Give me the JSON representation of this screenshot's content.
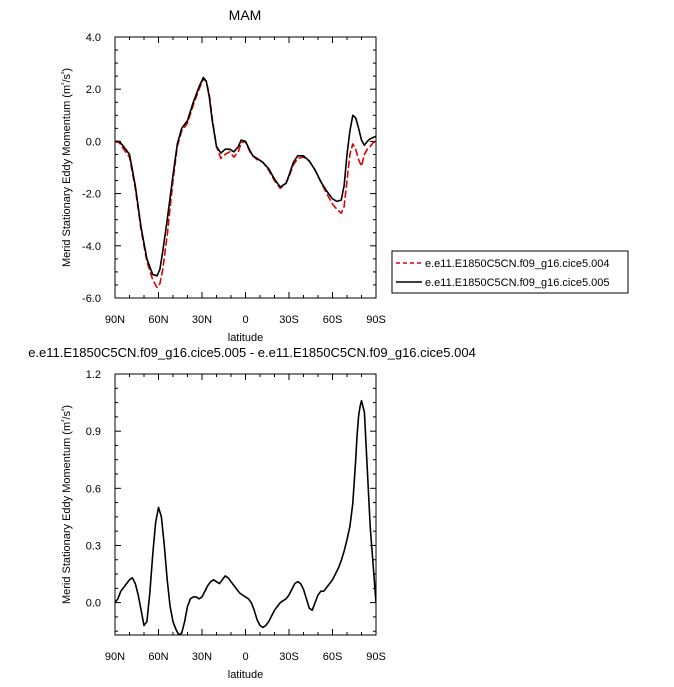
{
  "chart_data": [
    {
      "type": "line",
      "title": "MAM",
      "xlabel": "latitude",
      "ylabel": "Merid Stationary Eddy Momentum (m²/s²)",
      "xlim": [
        90,
        -90
      ],
      "ylim": [
        -6.0,
        4.0
      ],
      "x_ticks": [
        {
          "value": 90,
          "label": "90N"
        },
        {
          "value": 60,
          "label": "60N"
        },
        {
          "value": 30,
          "label": "30N"
        },
        {
          "value": 0,
          "label": "0"
        },
        {
          "value": -30,
          "label": "30S"
        },
        {
          "value": -60,
          "label": "60S"
        },
        {
          "value": -90,
          "label": "90S"
        }
      ],
      "y_ticks": [
        {
          "value": 4.0,
          "label": "4.0"
        },
        {
          "value": 2.0,
          "label": "2.0"
        },
        {
          "value": 0.0,
          "label": "0.0"
        },
        {
          "value": -2.0,
          "label": "-2.0"
        },
        {
          "value": -4.0,
          "label": "-4.0"
        },
        {
          "value": -6.0,
          "label": "-6.0"
        }
      ],
      "legend": "outside-right",
      "series": [
        {
          "name": "e.e11.E1850C5CN.f09_g16.cice5.004",
          "color": "#dd0000",
          "dash": true,
          "x": [
            90,
            87,
            84,
            80,
            76,
            72,
            68,
            64,
            61,
            59,
            57,
            54,
            50,
            47,
            44,
            40,
            36,
            32,
            29,
            27,
            25,
            23,
            20,
            17,
            14,
            11,
            8,
            5,
            3,
            0,
            -3,
            -5,
            -8,
            -12,
            -16,
            -20,
            -24,
            -28,
            -30,
            -33,
            -36,
            -40,
            -44,
            -48,
            -52,
            -56,
            -60,
            -63,
            -66,
            -68,
            -70,
            -72,
            -74,
            -76,
            -78,
            -80,
            -82,
            -84,
            -86,
            -88,
            -90
          ],
          "y": [
            0.0,
            -0.05,
            -0.3,
            -0.6,
            -1.8,
            -3.4,
            -4.6,
            -5.3,
            -5.6,
            -5.45,
            -4.9,
            -3.6,
            -1.5,
            -0.2,
            0.4,
            0.7,
            1.4,
            2.0,
            2.4,
            2.3,
            1.8,
            0.9,
            -0.2,
            -0.65,
            -0.5,
            -0.4,
            -0.6,
            -0.4,
            -0.05,
            0.0,
            -0.4,
            -0.55,
            -0.7,
            -0.8,
            -1.1,
            -1.5,
            -1.8,
            -1.6,
            -1.35,
            -0.9,
            -0.65,
            -0.6,
            -0.75,
            -1.1,
            -1.55,
            -2.0,
            -2.4,
            -2.6,
            -2.75,
            -2.5,
            -1.5,
            -0.5,
            -0.1,
            -0.3,
            -0.7,
            -0.95,
            -0.5,
            -0.3,
            -0.2,
            -0.05,
            0.0
          ]
        },
        {
          "name": "e.e11.E1850C5CN.f09_g16.cice5.005",
          "color": "#000000",
          "dash": false,
          "x": [
            90,
            87,
            84,
            80,
            76,
            72,
            68,
            64,
            61,
            59,
            57,
            54,
            50,
            47,
            44,
            40,
            36,
            32,
            29,
            27,
            25,
            23,
            20,
            17,
            14,
            11,
            8,
            5,
            3,
            0,
            -3,
            -5,
            -8,
            -12,
            -16,
            -20,
            -24,
            -28,
            -30,
            -33,
            -36,
            -40,
            -44,
            -48,
            -52,
            -56,
            -60,
            -63,
            -66,
            -68,
            -70,
            -72,
            -74,
            -76,
            -78,
            -80,
            -82,
            -84,
            -86,
            -88,
            -90
          ],
          "y": [
            0.0,
            0.0,
            -0.2,
            -0.5,
            -1.7,
            -3.3,
            -4.5,
            -5.1,
            -5.15,
            -4.9,
            -4.2,
            -3.0,
            -1.3,
            -0.1,
            0.5,
            0.8,
            1.5,
            2.1,
            2.45,
            2.3,
            1.7,
            0.8,
            -0.2,
            -0.45,
            -0.3,
            -0.3,
            -0.4,
            -0.2,
            0.05,
            0.0,
            -0.35,
            -0.55,
            -0.65,
            -0.8,
            -1.05,
            -1.45,
            -1.75,
            -1.6,
            -1.3,
            -0.8,
            -0.55,
            -0.55,
            -0.75,
            -1.1,
            -1.55,
            -1.9,
            -2.2,
            -2.3,
            -2.25,
            -1.7,
            -0.5,
            0.4,
            1.0,
            0.9,
            0.5,
            0.05,
            -0.15,
            0.0,
            0.1,
            0.15,
            0.2
          ]
        }
      ]
    },
    {
      "type": "line",
      "title": "e.e11.E1850C5CN.f09_g16.cice5.005 - e.e11.E1850C5CN.f09_g16.cice5.004",
      "xlabel": "latitude",
      "ylabel": "Merid Stationary Eddy Momentum (m²/s²)",
      "xlim": [
        90,
        -90
      ],
      "ylim": [
        -0.17,
        1.2
      ],
      "x_ticks": [
        {
          "value": 90,
          "label": "90N"
        },
        {
          "value": 60,
          "label": "60N"
        },
        {
          "value": 30,
          "label": "30N"
        },
        {
          "value": 0,
          "label": "0"
        },
        {
          "value": -30,
          "label": "30S"
        },
        {
          "value": -60,
          "label": "60S"
        },
        {
          "value": -90,
          "label": "90S"
        }
      ],
      "y_ticks": [
        {
          "value": 1.2,
          "label": "1.2"
        },
        {
          "value": 0.9,
          "label": "0.9"
        },
        {
          "value": 0.6,
          "label": "0.6"
        },
        {
          "value": 0.3,
          "label": "0.3"
        },
        {
          "value": 0.0,
          "label": "0.0"
        }
      ],
      "series": [
        {
          "color": "#000000",
          "dash": false,
          "x": [
            90,
            88,
            86,
            84,
            82,
            80,
            78,
            76,
            74,
            72,
            70,
            68,
            66,
            64,
            62,
            60,
            58,
            56,
            54,
            52,
            50,
            48,
            46,
            44,
            42,
            40,
            38,
            36,
            34,
            32,
            30,
            28,
            26,
            24,
            22,
            20,
            18,
            16,
            14,
            12,
            10,
            8,
            6,
            4,
            2,
            0,
            -2,
            -4,
            -6,
            -8,
            -10,
            -12,
            -14,
            -16,
            -18,
            -20,
            -22,
            -24,
            -26,
            -28,
            -30,
            -32,
            -34,
            -36,
            -38,
            -40,
            -42,
            -44,
            -46,
            -48,
            -50,
            -52,
            -54,
            -56,
            -58,
            -60,
            -62,
            -64,
            -66,
            -68,
            -70,
            -72,
            -74,
            -76,
            -77,
            -78,
            -79,
            -80,
            -82,
            -84,
            -86,
            -88,
            -90
          ],
          "y": [
            0.0,
            0.02,
            0.06,
            0.08,
            0.1,
            0.12,
            0.13,
            0.1,
            0.04,
            -0.04,
            -0.12,
            -0.1,
            0.05,
            0.25,
            0.42,
            0.5,
            0.45,
            0.3,
            0.12,
            -0.02,
            -0.1,
            -0.14,
            -0.17,
            -0.16,
            -0.1,
            -0.02,
            0.02,
            0.03,
            0.03,
            0.02,
            0.03,
            0.06,
            0.09,
            0.11,
            0.12,
            0.11,
            0.1,
            0.12,
            0.14,
            0.13,
            0.11,
            0.09,
            0.07,
            0.05,
            0.04,
            0.03,
            0.02,
            0.0,
            -0.04,
            -0.09,
            -0.12,
            -0.13,
            -0.12,
            -0.1,
            -0.07,
            -0.04,
            -0.02,
            0.0,
            0.01,
            0.02,
            0.04,
            0.07,
            0.1,
            0.11,
            0.1,
            0.07,
            0.02,
            -0.03,
            -0.04,
            0.0,
            0.04,
            0.06,
            0.06,
            0.08,
            0.1,
            0.12,
            0.15,
            0.18,
            0.22,
            0.27,
            0.33,
            0.4,
            0.52,
            0.75,
            0.88,
            0.98,
            1.03,
            1.06,
            1.0,
            0.7,
            0.4,
            0.2,
            0.0
          ]
        }
      ]
    }
  ]
}
